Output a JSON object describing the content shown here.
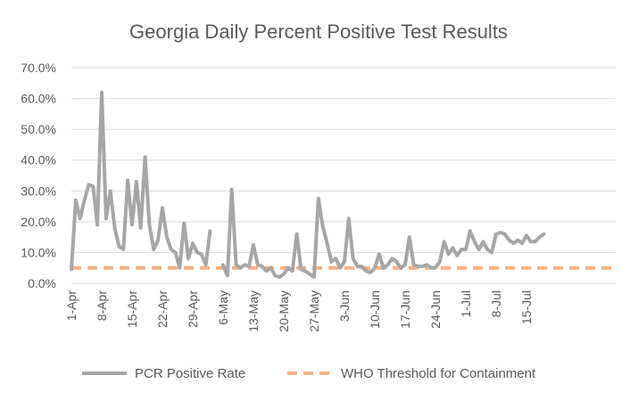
{
  "chart_data": {
    "type": "line",
    "title": "Georgia Daily Percent Positive Test Results",
    "xlabel": "",
    "ylabel": "",
    "ylim": [
      0,
      70
    ],
    "y_ticks": [
      "0.0%",
      "10.0%",
      "20.0%",
      "30.0%",
      "40.0%",
      "50.0%",
      "60.0%",
      "70.0%"
    ],
    "x_ticks": [
      "1-Apr",
      "8-Apr",
      "15-Apr",
      "22-Apr",
      "29-Apr",
      "6-May",
      "13-May",
      "20-May",
      "27-May",
      "3-Jun",
      "10-Jun",
      "17-Jun",
      "24-Jun",
      "1-Jul",
      "8-Jul",
      "15-Jul"
    ],
    "x_start": "1-Apr",
    "grid": true,
    "legend_position": "bottom",
    "series": [
      {
        "name": "PCR Positive Rate",
        "color": "#a6a6a6",
        "style": "solid",
        "values": [
          4.5,
          27,
          21,
          27,
          32,
          31.5,
          19,
          62,
          21,
          30,
          18,
          12,
          11,
          33.5,
          19,
          33,
          18,
          41,
          19,
          11,
          14,
          24.5,
          15,
          11,
          10,
          5,
          19.5,
          8,
          13,
          10,
          9.5,
          6,
          17,
          null,
          null,
          6,
          2.5,
          30.5,
          6,
          5,
          6,
          5.5,
          12.5,
          6,
          5.5,
          4,
          5,
          2.5,
          2,
          3,
          5,
          4,
          16,
          4.5,
          4,
          3,
          2,
          27.5,
          18.5,
          13,
          7,
          8,
          5,
          7,
          21,
          8,
          5.5,
          5.5,
          4,
          3.5,
          5,
          9.5,
          5,
          6,
          8,
          7,
          5,
          6,
          15,
          6,
          5.5,
          5.5,
          6,
          5,
          5,
          7,
          13.5,
          9.5,
          11.5,
          9,
          11,
          11,
          17,
          13.5,
          11,
          13.5,
          11,
          10,
          16,
          16.5,
          16,
          14,
          13,
          14,
          13,
          15.5,
          13.5,
          13.5,
          15,
          16
        ]
      },
      {
        "name": "WHO Threshold for Containment",
        "color": "#f4b183",
        "style": "dashed",
        "values": [
          5,
          5
        ]
      }
    ]
  }
}
